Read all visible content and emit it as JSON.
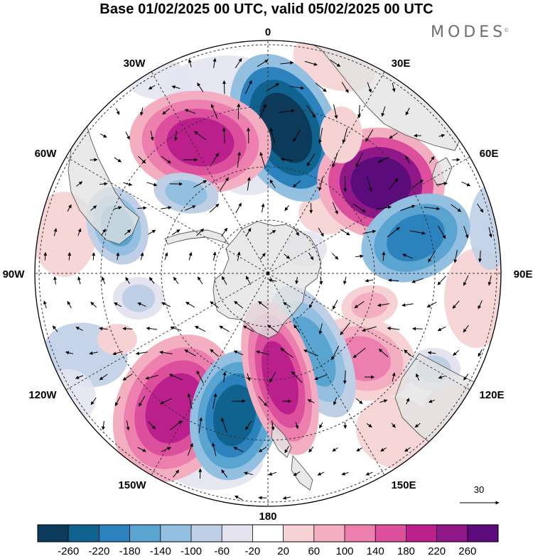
{
  "title": "Base 01/02/2025 00 UTC, valid 05/02/2025 00 UTC",
  "logo": {
    "text": "MODES",
    "mark": "©"
  },
  "longitude_labels": [
    "0",
    "30E",
    "60E",
    "90E",
    "120E",
    "150E",
    "180",
    "150W",
    "120W",
    "90W",
    "60W",
    "30W"
  ],
  "colorbar": {
    "ticks": [
      "-260",
      "-220",
      "-180",
      "-140",
      "-100",
      "-60",
      "-20",
      "20",
      "60",
      "100",
      "140",
      "180",
      "220",
      "260"
    ],
    "colors": [
      "#0c3a5a",
      "#10628f",
      "#2b82bc",
      "#5aa4d2",
      "#93bfe0",
      "#bfcfe6",
      "#e4e4f1",
      "#ffffff",
      "#f6d2d4",
      "#f3aec2",
      "#ec7fae",
      "#dc4f9c",
      "#bb1f8c",
      "#901788",
      "#5c0b7d"
    ]
  },
  "vector_reference": {
    "label": "30"
  },
  "anomaly_features": [
    {
      "sign": "negative",
      "level": -240,
      "colors": [
        "#93bfe0",
        "#2b82bc",
        "#10628f",
        "#0c3a5a"
      ]
    },
    {
      "sign": "positive",
      "level": 260,
      "colors": [
        "#f3aec2",
        "#dc4f9c",
        "#901788",
        "#5c0b7d"
      ]
    },
    {
      "sign": "positive",
      "level": 180,
      "colors": [
        "#f3aec2",
        "#ec7fae",
        "#dc4f9c",
        "#bb1f8c"
      ]
    },
    {
      "sign": "negative",
      "level": -180,
      "colors": [
        "#93bfe0",
        "#5aa4d2",
        "#2b82bc"
      ]
    },
    {
      "sign": "positive",
      "level": 120,
      "colors": [
        "#f6d2d4",
        "#f3aec2",
        "#ec7fae"
      ]
    },
    {
      "sign": "negative",
      "level": -140,
      "colors": [
        "#bfcfe6",
        "#93bfe0",
        "#5aa4d2"
      ]
    },
    {
      "sign": "positive",
      "level": 200,
      "colors": [
        "#f3aec2",
        "#ec7fae",
        "#dc4f9c",
        "#bb1f8c"
      ]
    },
    {
      "sign": "negative",
      "level": -220,
      "colors": [
        "#93bfe0",
        "#5aa4d2",
        "#2b82bc",
        "#10628f"
      ]
    },
    {
      "sign": "positive",
      "level": 180,
      "colors": [
        "#f3aec2",
        "#ec7fae",
        "#dc4f9c",
        "#bb1f8c"
      ]
    },
    {
      "sign": "negative",
      "level": -120,
      "colors": [
        "#bfcfe6",
        "#93bfe0",
        "#5aa4d2"
      ]
    },
    {
      "sign": "negative",
      "level": -100,
      "colors": [
        "#bfcfe6",
        "#93bfe0"
      ]
    },
    {
      "sign": "negative",
      "level": -60,
      "colors": [
        "#e4e4f1",
        "#bfcfe6"
      ]
    },
    {
      "sign": "positive",
      "level": 60,
      "colors": [
        "#f6d2d4"
      ]
    },
    {
      "sign": "positive",
      "level": 80,
      "colors": [
        "#f6d2d4",
        "#f3aec2"
      ]
    },
    {
      "sign": "positive",
      "level": 60,
      "colors": [
        "#f6d2d4"
      ]
    },
    {
      "sign": "negative",
      "level": -60,
      "colors": [
        "#e4e4f1",
        "#bfcfe6"
      ]
    }
  ],
  "land_color": "#e6e6e6",
  "coast_color": "#555555"
}
